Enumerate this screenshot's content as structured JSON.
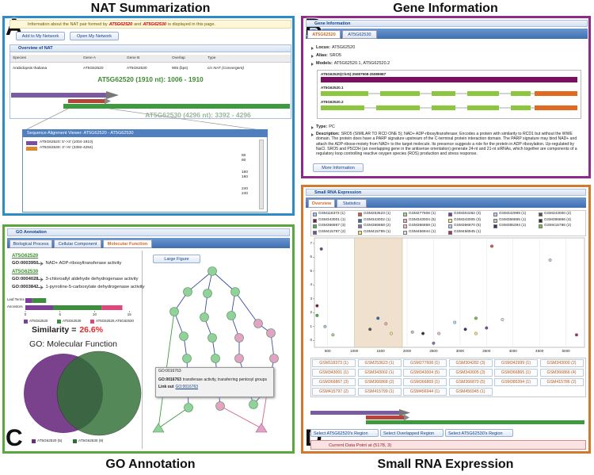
{
  "figure_titles": {
    "a": "NAT Summarization",
    "b": "Gene Information",
    "c": "GO Annotation",
    "d": "Small RNA Expression"
  },
  "panel_letters": {
    "a": "A",
    "b": "B",
    "c": "C",
    "d": "D"
  },
  "nat": {
    "info": {
      "text1": "Information about the NAT pair formed by",
      "gene_a": "AT5G62520",
      "and": "and",
      "gene_b": "AT5G62530",
      "text2": "is displayed in this page."
    },
    "buttons": [
      "Add to My Network",
      "Open My Network"
    ],
    "overview_title": "Overview of NAT",
    "table": {
      "header": [
        "Species",
        "Gene A",
        "Gene B",
        "Overlap",
        "Type"
      ],
      "rows": [
        [
          "Arabidopsis thaliana",
          "AT5G62520",
          "AT5G62530",
          "905 (bps)",
          "cis-NAT (Convergent)"
        ]
      ]
    },
    "gene_a_label": "AT5G62520 (1910 nt): 1006 - 1910",
    "gene_b_label": "AT5G62530 (4296 nt): 3392 - 4296",
    "viewer_title": "Sequence Alignment Viewer: AT5G62520 - AT5G62530",
    "viewer_legend": [
      "AT5G62520: 5'->3' (1004-1910)",
      "AT5G62530: 3'->5' (3392-4294)"
    ],
    "line_numbers": [
      "80",
      "80",
      "160",
      "160",
      "240",
      "240"
    ]
  },
  "gene_info": {
    "header": "Gene Information",
    "tabs": [
      "AT5G62520",
      "AT5G62530"
    ],
    "items": [
      {
        "label": "Locus:",
        "value": "AT5G62520"
      },
      {
        "label": "Alias:",
        "value": "SRO5"
      },
      {
        "label": "Models:",
        "value": "AT5G62520.1, AT5G62520.2"
      }
    ],
    "model_labels": [
      "AT5G62520(Chr5):25087908-25089987",
      "AT5G62520.1",
      "AT5G62520.2"
    ],
    "type": {
      "label": "Type:",
      "value": "PC"
    },
    "description": {
      "label": "Description:",
      "value": "SRO5 (SIMILAR TO RCD ONE 5); NAD+ ADP-ribosyltransferase; Encodes a protein with similarity to RCD1 but without the WWE domain. The protein does have a PARP signature upstream of the C-terminal protein interaction domain. The PARP signature may bind NAD+ and attach the ADP-ribose-moiety from NAD+ to the target molecule. Its presence suggests a role for the protein in ADP ribosylation. Up-regulated by NaCl. SRO5 and P5CDH (an overlapping gene in the antisense orientation) generate 24-nt and 21-nt siRNAs, which together are components of a regulatory loop controlling reactive oxygen species (ROS) production and stress response."
    },
    "button": "More Information"
  },
  "go": {
    "header": "GO Annotation",
    "tabs": [
      "Biological Process",
      "Cellular Component",
      "Molecular Function"
    ],
    "genes": [
      {
        "name": "AT5G62520",
        "terms": [
          {
            "id": "GO:0003950",
            "name": "NAD+ ADP-ribosyltransferase activity"
          }
        ]
      },
      {
        "name": "AT5G62530",
        "terms": [
          {
            "id": "GO:0004028",
            "name": "3-chloroallyl aldehyde dehydrogenase activity"
          },
          {
            "id": "GO:0003842",
            "name": "1-pyrroline-5-carboxylate dehydrogenase activity"
          }
        ]
      }
    ],
    "term_chart": {
      "type": "bar",
      "categories": [
        "Leaf Terms",
        "Ancestors"
      ],
      "series": [
        {
          "name": "AT5G62520",
          "color": "#7b3f99",
          "values": [
            1,
            4
          ]
        },
        {
          "name": "AT5G62530",
          "color": "#3c8d3c",
          "values": [
            2,
            7
          ]
        },
        {
          "name": "AT5G62520,AT5G62530",
          "color": "#e0457b",
          "values": [
            0,
            3
          ]
        }
      ],
      "xlim": [
        0,
        16
      ],
      "xticks": [
        0,
        5,
        10,
        15
      ]
    },
    "similarity_label": "Similarity =",
    "similarity_value": "26.6%",
    "venn_title": "GO: Molecular Function",
    "venn_legend": [
      "AT5G62520 (5)",
      "AT5G62530 (9)"
    ],
    "large_figure": "Large Figure",
    "popup": {
      "title": "GO:0016763",
      "id": "GO:0016763",
      "text": "transferase activity, transferring pentosyl groups",
      "link_label": "Link out",
      "link_id": "GO:0016763"
    }
  },
  "small_rna": {
    "header": "Small RNA Expression",
    "tabs": [
      "Overview",
      "Statistics"
    ],
    "samples": [
      {
        "label": "GSM118373 (1)",
        "color": "#9ec7e8",
        "x": [
          450
        ],
        "y": [
          1.0
        ]
      },
      {
        "label": "GSM253623 (1)",
        "color": "#d9534f",
        "x": [
          3600
        ],
        "y": [
          6.8
        ]
      },
      {
        "label": "GSM277608 (1)",
        "color": "#9fd68f",
        "x": [
          600
        ],
        "y": [
          0.4
        ]
      },
      {
        "label": "GSM304282 (3)",
        "color": "#7b3f99",
        "x": [
          380
        ],
        "y": [
          6.6
        ]
      },
      {
        "label": "GSM342999 (1)",
        "color": "#c8c8e8",
        "x": [
          4700
        ],
        "y": [
          5.8
        ]
      },
      {
        "label": "GSM343000 (2)",
        "color": "#555555",
        "x": [
          1300
        ],
        "y": [
          0.8
        ]
      },
      {
        "label": "GSM343001 (1)",
        "color": "#7a1f3d",
        "x": [
          300
        ],
        "y": [
          2.5
        ]
      },
      {
        "label": "GSM343002 (1)",
        "color": "#2d6bb5",
        "x": [
          1450
        ],
        "y": [
          1.6
        ]
      },
      {
        "label": "GSM343004 (5)",
        "color": "#f3a6b0",
        "x": [
          1600
        ],
        "y": [
          1.2
        ]
      },
      {
        "label": "GSM343005 (3)",
        "color": "#f0e68c",
        "x": [
          1700
        ],
        "y": [
          0.5
        ]
      },
      {
        "label": "GSM366865 (1)",
        "color": "#c0c0c0",
        "x": [
          2100
        ],
        "y": [
          0.6
        ]
      },
      {
        "label": "GSM366866 (4)",
        "color": "#333333",
        "x": [
          2300
        ],
        "y": [
          0.5
        ]
      },
      {
        "label": "GSM366867 (3)",
        "color": "#4caf50",
        "x": [
          300
        ],
        "y": [
          1.8
        ]
      },
      {
        "label": "GSM366868 (2)",
        "color": "#8a6bbf",
        "x": [
          2500
        ],
        "y": [
          -0.2
        ]
      },
      {
        "label": "GSM366869 (1)",
        "color": "#f4b6c2",
        "x": [
          2600
        ],
        "y": [
          0.5
        ]
      },
      {
        "label": "GSM366870 (5)",
        "color": "#aad4ee",
        "x": [
          2900
        ],
        "y": [
          1.3
        ]
      },
      {
        "label": "GSM385394 (1)",
        "color": "#333366",
        "x": [
          3100
        ],
        "y": [
          0.8
        ]
      },
      {
        "label": "GSM415786 (2)",
        "color": "#6fbf4f",
        "x": [
          3300
        ],
        "y": [
          1.6
        ]
      },
      {
        "label": "GSM415797 (2)",
        "color": "#7a4fa0",
        "x": [
          3500
        ],
        "y": [
          0.9
        ]
      },
      {
        "label": "GSM415799 (1)",
        "color": "#f7e26b",
        "x": [
          3300
        ],
        "y": [
          0.5
        ]
      },
      {
        "label": "GSM456944 (1)",
        "color": "#dddddd",
        "x": [
          3800
        ],
        "y": [
          1.5
        ]
      },
      {
        "label": "GSM456945 (1)",
        "color": "#b03060",
        "x": [
          5200
        ],
        "y": [
          0.4
        ]
      }
    ],
    "plot": {
      "type": "scatter",
      "xlim": [
        250,
        5350
      ],
      "ylim": [
        -0.5,
        7.4
      ],
      "xticks": [
        500,
        1000,
        1500,
        2000,
        2500,
        3000,
        3500,
        4000,
        4500,
        5000
      ],
      "yticks": [
        0,
        1,
        2,
        3,
        4,
        5,
        6,
        7
      ],
      "grid": true,
      "highlight": [
        1006,
        1910
      ]
    },
    "buttons": [
      "Select AT5G62520's Region",
      "Select Overlapped Region",
      "Select AT5G62530's Region"
    ],
    "current": "Current Data Point at (5178, 3)"
  }
}
